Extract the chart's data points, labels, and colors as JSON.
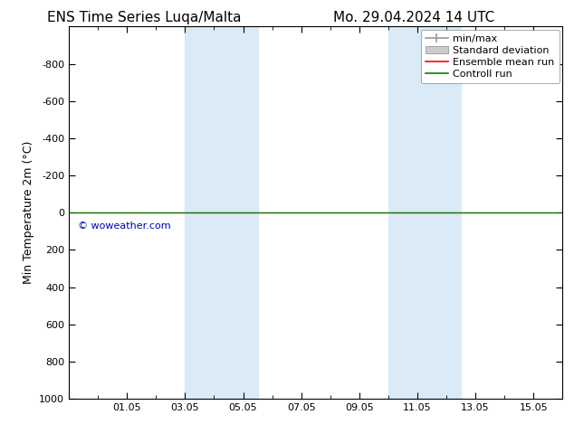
{
  "title_left": "ENS Time Series Luqa/Malta",
  "title_right": "Mo. 29.04.2024 14 UTC",
  "ylabel": "Min Temperature 2m (°C)",
  "ylim_bottom": 1000,
  "ylim_top": -1000,
  "y_ticks": [
    -800,
    -600,
    -400,
    -200,
    0,
    200,
    400,
    600,
    800,
    1000
  ],
  "x_ticks_labels": [
    "01.05",
    "03.05",
    "05.05",
    "07.05",
    "09.05",
    "11.05",
    "13.05",
    "15.05"
  ],
  "x_ticks_values": [
    2,
    4,
    6,
    8,
    10,
    12,
    14,
    16
  ],
  "x_min": 0.0,
  "x_max": 17.0,
  "shaded_bands": [
    {
      "x_start": 4.0,
      "x_end": 6.5,
      "color": "#daeaf7"
    },
    {
      "x_start": 11.0,
      "x_end": 13.5,
      "color": "#daeaf7"
    }
  ],
  "green_line_y": 0,
  "red_line_y": 0,
  "watermark": "© woweather.com",
  "watermark_color": "#0000bb",
  "watermark_data_x": 0.3,
  "watermark_data_y": 50,
  "legend_items": [
    {
      "label": "min/max",
      "color": "#999999"
    },
    {
      "label": "Standard deviation",
      "color": "#cccccc"
    },
    {
      "label": "Ensemble mean run",
      "color": "red"
    },
    {
      "label": "Controll run",
      "color": "green"
    }
  ],
  "background_color": "#ffffff",
  "font_size_title": 11,
  "font_size_tick": 8,
  "font_size_ylabel": 9,
  "font_size_legend": 8,
  "font_size_watermark": 8
}
